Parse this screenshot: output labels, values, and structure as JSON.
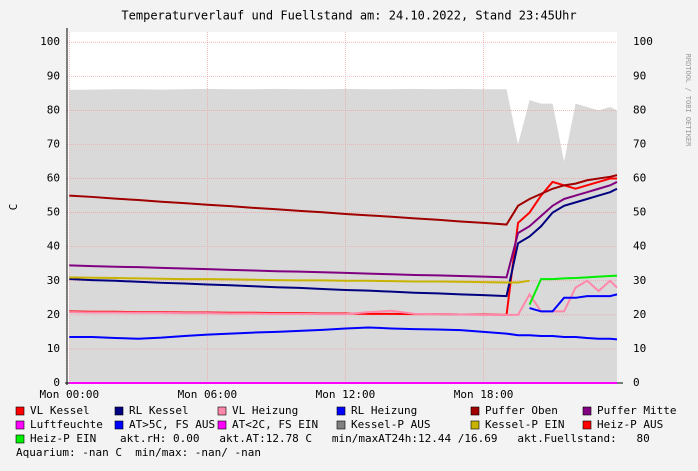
{
  "chart_data": {
    "type": "line",
    "title": "Temperaturverlauf und Fuellstand am: 24.10.2022, Stand 23:45Uhr",
    "y_label": "C",
    "watermark": "RRDTOOL / TOBI OETIKER",
    "x": [
      0,
      1,
      2,
      3,
      4,
      5,
      6,
      7,
      8,
      9,
      10,
      11,
      12,
      13,
      14,
      15,
      16,
      17,
      18,
      19,
      19.5,
      20,
      20.5,
      21,
      21.5,
      22,
      22.5,
      23,
      23.5,
      23.8
    ],
    "xlim": [
      -0.1,
      23.8
    ],
    "xticks": [
      {
        "value": 0,
        "label": "Mon 00:00"
      },
      {
        "value": 6,
        "label": "Mon 06:00"
      },
      {
        "value": 12,
        "label": "Mon 12:00"
      },
      {
        "value": 18,
        "label": "Mon 18:00"
      }
    ],
    "ylim": [
      0,
      103
    ],
    "yticks": [
      0,
      10,
      20,
      30,
      40,
      50,
      60,
      70,
      80,
      90,
      100
    ],
    "grid": true,
    "area": {
      "color": "#d9d9d9",
      "values": [
        86,
        86.1,
        86.2,
        86.2,
        86.1,
        86.2,
        86.3,
        86.2,
        86.2,
        86.3,
        86.2,
        86.2,
        86.3,
        86.2,
        86.2,
        86.3,
        86.2,
        86.3,
        86.2,
        86.2,
        70,
        83,
        82,
        82,
        65,
        82,
        81,
        80,
        81,
        80
      ]
    },
    "series": [
      {
        "name": "VL Kessel",
        "color": "#ff0000",
        "values": [
          21,
          20.9,
          20.9,
          20.8,
          20.8,
          20.7,
          20.7,
          20.6,
          20.6,
          20.5,
          20.5,
          20.4,
          20.4,
          20.3,
          20.3,
          20.2,
          20.2,
          20.1,
          20.1,
          20,
          47,
          50,
          55,
          59,
          58,
          57,
          58,
          59,
          60,
          60
        ]
      },
      {
        "name": "RL Kessel",
        "color": "#000080",
        "values": [
          30.5,
          30.2,
          30,
          29.7,
          29.4,
          29.2,
          28.9,
          28.7,
          28.4,
          28.1,
          27.9,
          27.6,
          27.3,
          27.1,
          26.8,
          26.5,
          26.3,
          26,
          25.8,
          25.5,
          41,
          43,
          46,
          50,
          52,
          53,
          54,
          55,
          56,
          57
        ]
      },
      {
        "name": "VL Heizung",
        "color": "#ff88aa",
        "values": [
          20.8,
          20.7,
          20.7,
          20.6,
          20.6,
          20.5,
          20.5,
          20.4,
          20.4,
          20.3,
          20.3,
          20.2,
          20.2,
          20.8,
          21.2,
          20.3,
          20.2,
          20.1,
          20,
          20,
          20,
          26,
          21,
          21,
          21,
          28,
          30,
          27,
          30,
          28
        ]
      },
      {
        "name": "RL Heizung",
        "color": "#0000ff",
        "values": [
          13.5,
          13.5,
          13.2,
          13,
          13.3,
          13.8,
          14.2,
          14.5,
          14.8,
          15,
          15.3,
          15.6,
          16,
          16.3,
          16,
          15.8,
          15.7,
          15.5,
          15,
          14.5,
          14,
          14,
          13.8,
          13.8,
          13.5,
          13.5,
          13.2,
          13,
          13,
          12.8
        ]
      },
      {
        "name": "Puffer Oben",
        "color": "#a00000",
        "values": [
          55,
          54.6,
          54.1,
          53.7,
          53.2,
          52.8,
          52.3,
          51.9,
          51.4,
          51,
          50.5,
          50.1,
          49.6,
          49.2,
          48.8,
          48.3,
          47.9,
          47.4,
          47,
          46.5,
          52,
          54,
          55.5,
          57,
          58,
          58.5,
          59.5,
          60,
          60.5,
          61
        ]
      },
      {
        "name": "Puffer Mitte",
        "color": "#800080",
        "values": [
          34.5,
          34.3,
          34.1,
          34,
          33.8,
          33.6,
          33.4,
          33.2,
          33,
          32.8,
          32.7,
          32.5,
          32.3,
          32.1,
          31.9,
          31.7,
          31.6,
          31.4,
          31.2,
          31,
          44,
          46,
          49,
          52,
          54,
          55,
          56,
          57,
          58,
          59
        ]
      },
      {
        "name": "Luftfeuchte",
        "color": "#ff00ff",
        "values": [
          0,
          0,
          0,
          0,
          0,
          0,
          0,
          0,
          0,
          0,
          0,
          0,
          0,
          0,
          0,
          0,
          0,
          0,
          0,
          0,
          0,
          0,
          0,
          0,
          0,
          0,
          0,
          0,
          0,
          0
        ]
      },
      {
        "name": "AT>5C, FS AUS",
        "color": "#0000ff",
        "values": [
          null,
          null,
          null,
          null,
          null,
          null,
          null,
          null,
          null,
          null,
          null,
          null,
          null,
          null,
          null,
          null,
          null,
          null,
          null,
          null,
          null,
          22,
          21,
          21,
          25,
          25,
          25.5,
          25.5,
          25.5,
          26
        ]
      },
      {
        "name": "AT<2C, FS EIN",
        "color": "#ff00ff",
        "values": [
          null,
          null,
          null,
          null,
          null,
          null,
          null,
          null,
          null,
          null,
          null,
          null,
          null,
          null,
          null,
          null,
          null,
          null,
          null,
          null,
          null,
          null,
          null,
          null,
          null,
          null,
          null,
          null,
          null,
          null
        ]
      },
      {
        "name": "Kessel-P AUS",
        "color": "#808080",
        "values": [
          null,
          null,
          null,
          null,
          null,
          null,
          null,
          null,
          null,
          null,
          null,
          null,
          null,
          null,
          null,
          null,
          null,
          null,
          null,
          null,
          null,
          null,
          null,
          null,
          null,
          null,
          null,
          null,
          null,
          null
        ]
      },
      {
        "name": "Kessel-P EIN",
        "color": "#c8b400",
        "values": [
          31,
          30.9,
          30.8,
          30.7,
          30.6,
          30.5,
          30.5,
          30.4,
          30.3,
          30.2,
          30.1,
          30.1,
          30,
          30,
          29.9,
          29.8,
          29.8,
          29.7,
          29.6,
          29.5,
          29.5,
          30,
          null,
          null,
          null,
          null,
          null,
          null,
          null,
          null
        ]
      },
      {
        "name": "Heiz-P AUS",
        "color": "#ff0000",
        "values": [
          null,
          null,
          null,
          null,
          null,
          null,
          null,
          null,
          null,
          null,
          null,
          null,
          null,
          null,
          null,
          null,
          null,
          null,
          null,
          null,
          null,
          null,
          null,
          null,
          null,
          null,
          null,
          null,
          null,
          null
        ]
      },
      {
        "name": "Heiz-P EIN",
        "color": "#00ee00",
        "values": [
          null,
          null,
          null,
          null,
          null,
          null,
          null,
          null,
          null,
          null,
          null,
          null,
          null,
          null,
          null,
          null,
          null,
          null,
          null,
          null,
          null,
          23,
          30.5,
          30.5,
          30.7,
          30.8,
          31,
          31.2,
          31.4,
          31.5
        ]
      }
    ],
    "status": "akt.rH: 0.00   akt.AT:12.78 C   min/maxAT24h:12.44 /16.69   akt.Fuellstand:   80",
    "aquarium": "Aquarium: -nan C  min/max: -nan/ -nan"
  }
}
